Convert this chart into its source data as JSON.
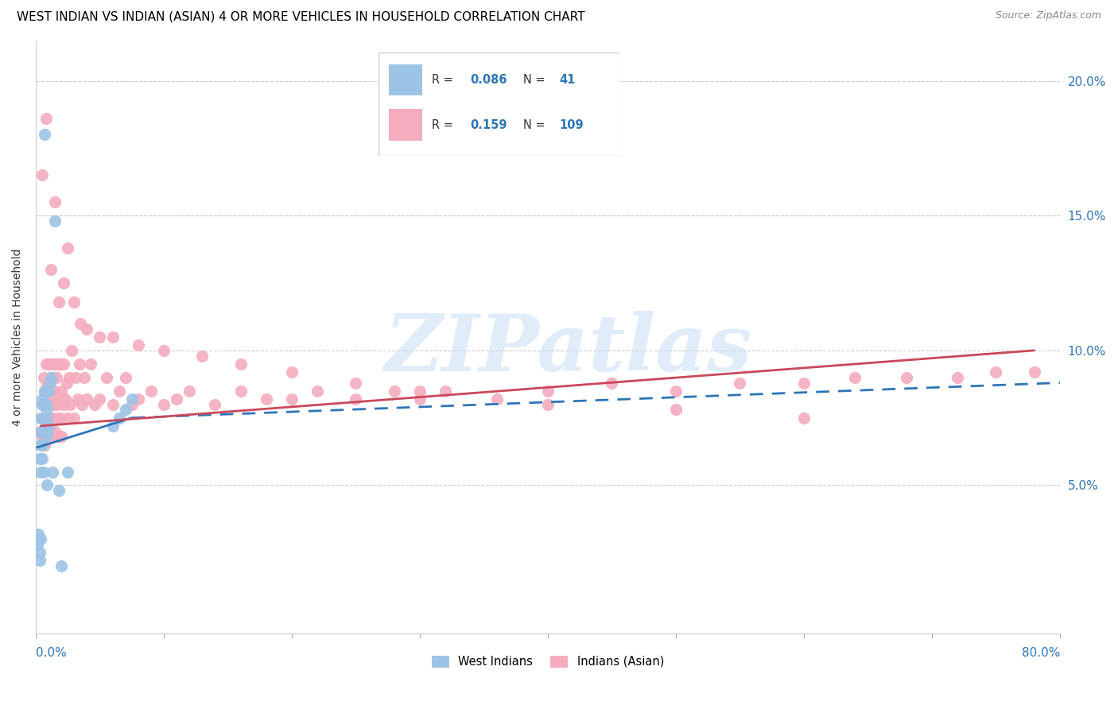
{
  "title": "WEST INDIAN VS INDIAN (ASIAN) 4 OR MORE VEHICLES IN HOUSEHOLD CORRELATION CHART",
  "source": "Source: ZipAtlas.com",
  "ylabel": "4 or more Vehicles in Household",
  "ytick_values": [
    0.05,
    0.1,
    0.15,
    0.2
  ],
  "ytick_labels": [
    "5.0%",
    "10.0%",
    "15.0%",
    "20.0%"
  ],
  "xlim": [
    0.0,
    0.8
  ],
  "ylim": [
    -0.005,
    0.215
  ],
  "blue_color": "#9dc3e6",
  "pink_color": "#f4acbe",
  "line_blue": "#2e75b6",
  "line_pink": "#c9485b",
  "watermark_text": "ZIPatlas",
  "wi_x": [
    0.001,
    0.002,
    0.002,
    0.003,
    0.003,
    0.003,
    0.004,
    0.004,
    0.004,
    0.004,
    0.004,
    0.005,
    0.005,
    0.005,
    0.005,
    0.005,
    0.006,
    0.006,
    0.006,
    0.007,
    0.007,
    0.007,
    0.008,
    0.008,
    0.008,
    0.009,
    0.009,
    0.009,
    0.01,
    0.01,
    0.011,
    0.012,
    0.013,
    0.015,
    0.018,
    0.02,
    0.025,
    0.06,
    0.065,
    0.07,
    0.075
  ],
  "wi_y": [
    0.028,
    0.03,
    0.032,
    0.025,
    0.022,
    0.06,
    0.03,
    0.055,
    0.065,
    0.07,
    0.075,
    0.06,
    0.065,
    0.075,
    0.08,
    0.082,
    0.055,
    0.07,
    0.08,
    0.08,
    0.085,
    0.18,
    0.068,
    0.075,
    0.08,
    0.05,
    0.07,
    0.078,
    0.072,
    0.085,
    0.088,
    0.09,
    0.055,
    0.148,
    0.048,
    0.02,
    0.055,
    0.072,
    0.075,
    0.078,
    0.082
  ],
  "ia_x": [
    0.004,
    0.005,
    0.005,
    0.006,
    0.006,
    0.007,
    0.007,
    0.008,
    0.008,
    0.008,
    0.009,
    0.009,
    0.01,
    0.01,
    0.01,
    0.011,
    0.011,
    0.011,
    0.012,
    0.012,
    0.012,
    0.013,
    0.013,
    0.014,
    0.014,
    0.015,
    0.015,
    0.015,
    0.016,
    0.016,
    0.017,
    0.017,
    0.018,
    0.018,
    0.018,
    0.019,
    0.02,
    0.02,
    0.02,
    0.022,
    0.022,
    0.023,
    0.024,
    0.025,
    0.026,
    0.027,
    0.028,
    0.03,
    0.031,
    0.033,
    0.034,
    0.036,
    0.038,
    0.04,
    0.043,
    0.046,
    0.05,
    0.055,
    0.06,
    0.065,
    0.07,
    0.075,
    0.08,
    0.09,
    0.1,
    0.11,
    0.12,
    0.14,
    0.16,
    0.18,
    0.2,
    0.22,
    0.25,
    0.28,
    0.3,
    0.32,
    0.36,
    0.4,
    0.45,
    0.5,
    0.55,
    0.6,
    0.64,
    0.68,
    0.72,
    0.75,
    0.78,
    0.005,
    0.008,
    0.012,
    0.015,
    0.018,
    0.022,
    0.025,
    0.03,
    0.035,
    0.04,
    0.05,
    0.06,
    0.08,
    0.1,
    0.13,
    0.16,
    0.2,
    0.25,
    0.3,
    0.4,
    0.5,
    0.6
  ],
  "ia_y": [
    0.07,
    0.068,
    0.08,
    0.075,
    0.09,
    0.065,
    0.085,
    0.072,
    0.08,
    0.095,
    0.07,
    0.088,
    0.075,
    0.085,
    0.095,
    0.068,
    0.08,
    0.095,
    0.07,
    0.082,
    0.095,
    0.075,
    0.09,
    0.08,
    0.095,
    0.07,
    0.085,
    0.095,
    0.075,
    0.09,
    0.08,
    0.095,
    0.068,
    0.082,
    0.095,
    0.075,
    0.068,
    0.085,
    0.095,
    0.08,
    0.095,
    0.082,
    0.088,
    0.075,
    0.09,
    0.08,
    0.1,
    0.075,
    0.09,
    0.082,
    0.095,
    0.08,
    0.09,
    0.082,
    0.095,
    0.08,
    0.082,
    0.09,
    0.08,
    0.085,
    0.09,
    0.08,
    0.082,
    0.085,
    0.08,
    0.082,
    0.085,
    0.08,
    0.085,
    0.082,
    0.082,
    0.085,
    0.082,
    0.085,
    0.082,
    0.085,
    0.082,
    0.085,
    0.088,
    0.085,
    0.088,
    0.088,
    0.09,
    0.09,
    0.09,
    0.092,
    0.092,
    0.165,
    0.186,
    0.13,
    0.155,
    0.118,
    0.125,
    0.138,
    0.118,
    0.11,
    0.108,
    0.105,
    0.105,
    0.102,
    0.1,
    0.098,
    0.095,
    0.092,
    0.088,
    0.085,
    0.08,
    0.078,
    0.075
  ],
  "wi_line_x_start": 0.001,
  "wi_line_x_solid_end": 0.075,
  "wi_line_x_dash_end": 0.8,
  "wi_line_y_start": 0.064,
  "wi_line_y_solid_end": 0.075,
  "wi_line_y_dash_end": 0.088,
  "ia_line_x_start": 0.004,
  "ia_line_x_end": 0.78,
  "ia_line_y_start": 0.072,
  "ia_line_y_end": 0.1
}
